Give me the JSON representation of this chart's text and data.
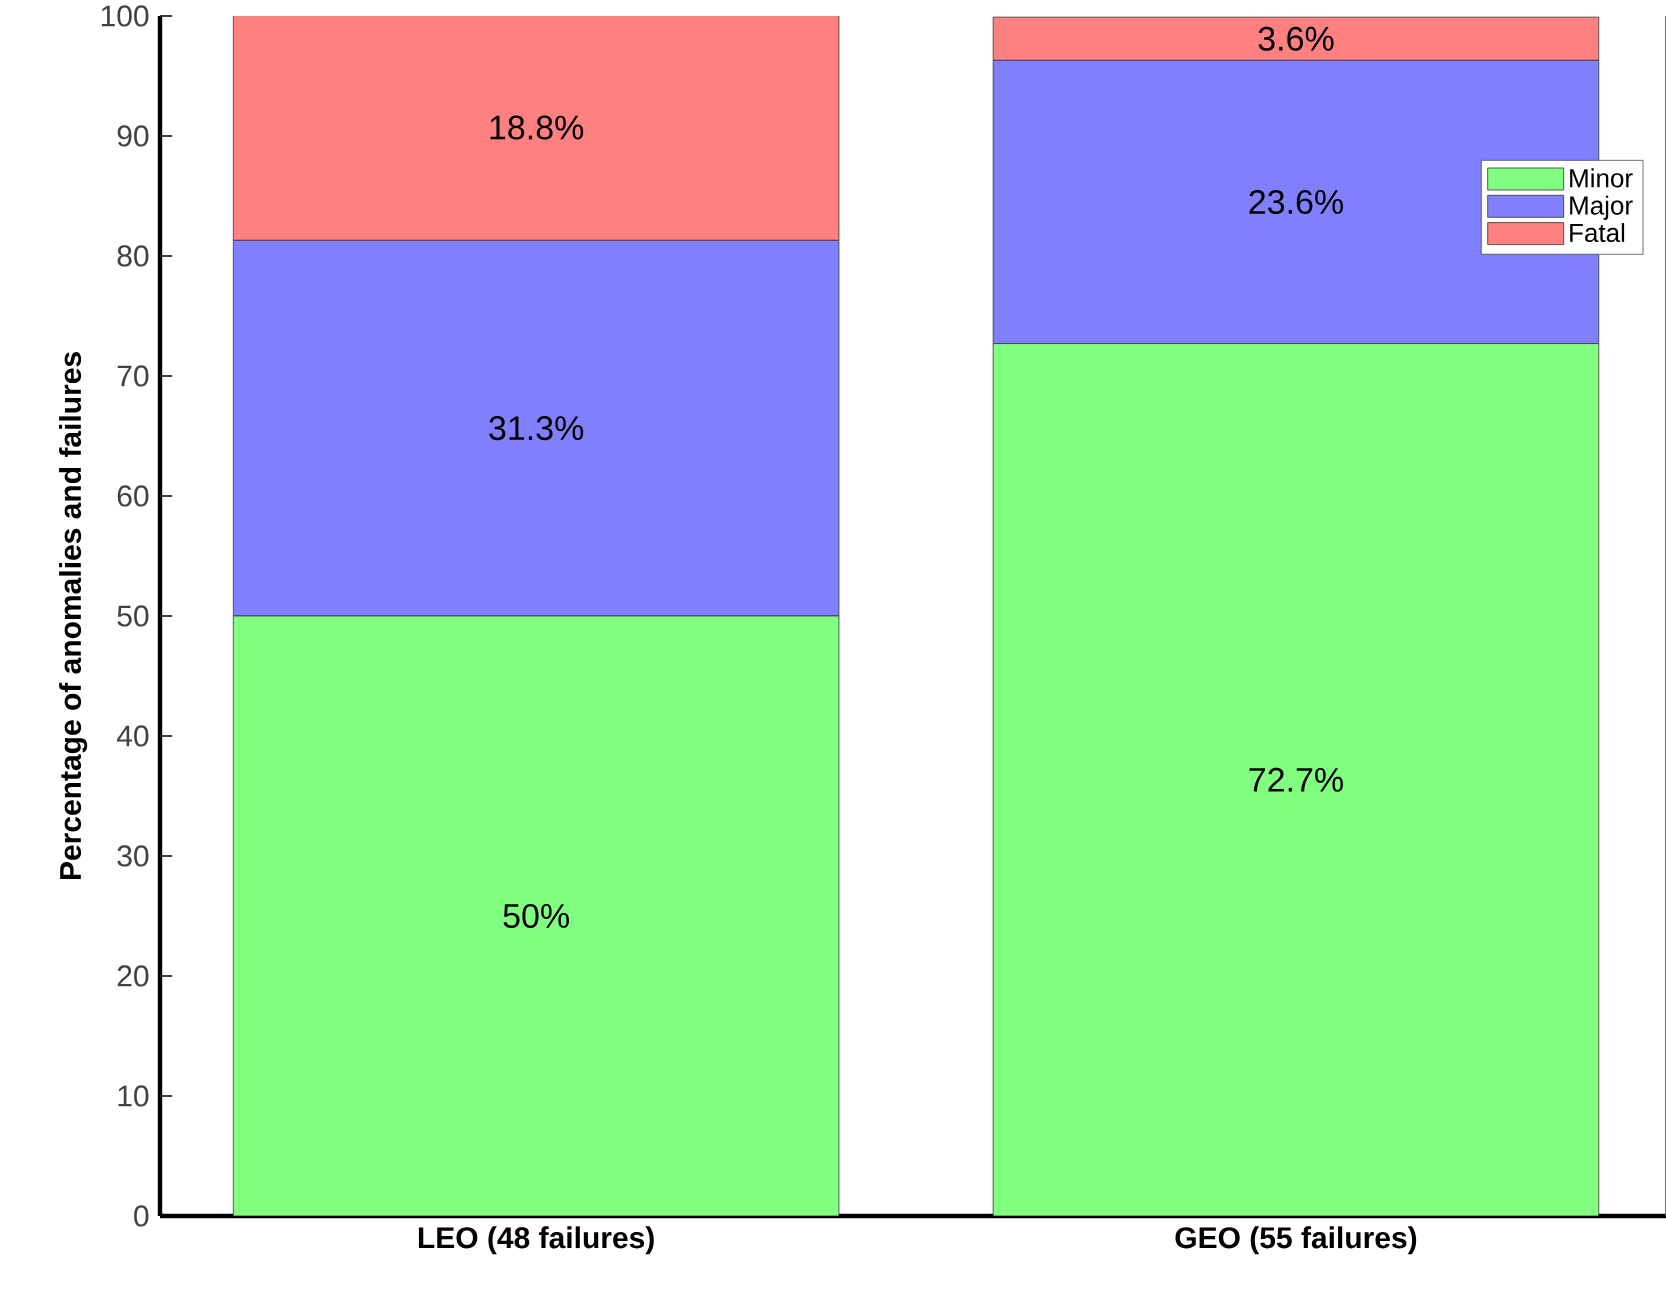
{
  "chart_data": {
    "type": "bar",
    "stacked": true,
    "ylabel": "Percentage of anomalies and failures",
    "categories": [
      "LEO (48 failures)",
      "GEO (55 failures)"
    ],
    "series": [
      {
        "name": "Minor",
        "color": "#80ff80",
        "values": [
          50,
          72.7
        ],
        "value_labels": [
          "50%",
          "72.7%"
        ]
      },
      {
        "name": "Major",
        "color": "#8080ff",
        "values": [
          31.3,
          23.6
        ],
        "value_labels": [
          "31.3%",
          "23.6%"
        ]
      },
      {
        "name": "Fatal",
        "color": "#ff8080",
        "values": [
          18.8,
          3.6
        ],
        "value_labels": [
          "18.8%",
          "3.6%"
        ]
      }
    ],
    "ylim": [
      0,
      100
    ],
    "yticks": [
      0,
      10,
      20,
      30,
      40,
      50,
      60,
      70,
      80,
      90,
      100
    ],
    "legend": "top right",
    "grid": false
  }
}
